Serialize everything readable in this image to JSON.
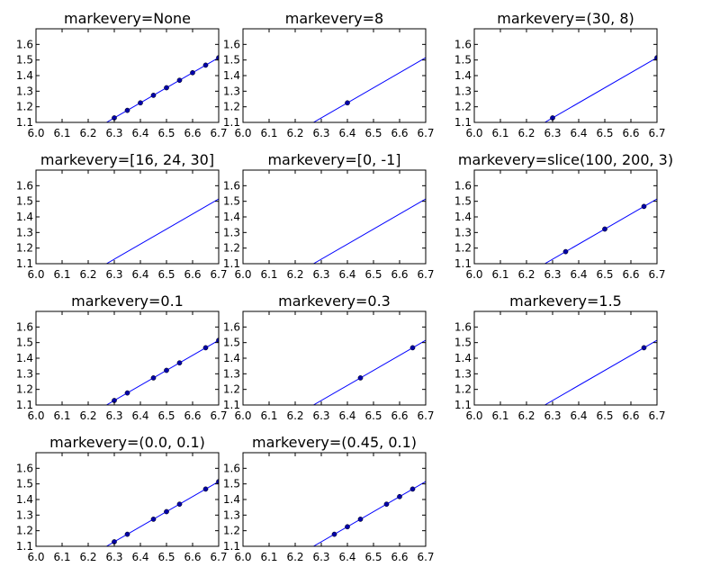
{
  "chart_data": [
    {
      "type": "line",
      "title": "markevery=None",
      "xlim": [
        6.0,
        6.7
      ],
      "ylim": [
        1.1,
        1.7
      ],
      "xticks": [
        "6.0",
        "6.1",
        "6.2",
        "6.3",
        "6.4",
        "6.5",
        "6.6",
        "6.7"
      ],
      "yticks": [
        "1.1",
        "1.2",
        "1.3",
        "1.4",
        "1.5",
        "1.6"
      ],
      "series": [
        {
          "line": [
            [
              6.27,
              1.1
            ],
            [
              6.7,
              1.515
            ]
          ],
          "markers_x": [
            6.3,
            6.35,
            6.4,
            6.45,
            6.5,
            6.55,
            6.6,
            6.65,
            6.7
          ],
          "color": "#0000ff"
        }
      ]
    },
    {
      "type": "line",
      "title": "markevery=8",
      "xlim": [
        6.0,
        6.7
      ],
      "ylim": [
        1.1,
        1.7
      ],
      "xticks": [
        "6.0",
        "6.1",
        "6.2",
        "6.3",
        "6.4",
        "6.5",
        "6.6",
        "6.7"
      ],
      "yticks": [
        "1.1",
        "1.2",
        "1.3",
        "1.4",
        "1.5",
        "1.6"
      ],
      "series": [
        {
          "line": [
            [
              6.27,
              1.1
            ],
            [
              6.7,
              1.515
            ]
          ],
          "markers_x": [
            6.4
          ],
          "color": "#0000ff"
        }
      ]
    },
    {
      "type": "line",
      "title": "markevery=(30, 8)",
      "xlim": [
        6.0,
        6.7
      ],
      "ylim": [
        1.1,
        1.7
      ],
      "xticks": [
        "6.0",
        "6.1",
        "6.2",
        "6.3",
        "6.4",
        "6.5",
        "6.6",
        "6.7"
      ],
      "yticks": [
        "1.1",
        "1.2",
        "1.3",
        "1.4",
        "1.5",
        "1.6"
      ],
      "series": [
        {
          "line": [
            [
              6.27,
              1.1
            ],
            [
              6.7,
              1.515
            ]
          ],
          "markers_x": [
            6.3,
            6.7
          ],
          "color": "#0000ff"
        }
      ]
    },
    {
      "type": "line",
      "title": "markevery=[16, 24, 30]",
      "xlim": [
        6.0,
        6.7
      ],
      "ylim": [
        1.1,
        1.7
      ],
      "xticks": [
        "6.0",
        "6.1",
        "6.2",
        "6.3",
        "6.4",
        "6.5",
        "6.6",
        "6.7"
      ],
      "yticks": [
        "1.1",
        "1.2",
        "1.3",
        "1.4",
        "1.5",
        "1.6"
      ],
      "series": [
        {
          "line": [
            [
              6.27,
              1.1
            ],
            [
              6.7,
              1.515
            ]
          ],
          "markers_x": [],
          "color": "#0000ff"
        }
      ]
    },
    {
      "type": "line",
      "title": "markevery=[0, -1]",
      "xlim": [
        6.0,
        6.7
      ],
      "ylim": [
        1.1,
        1.7
      ],
      "xticks": [
        "6.0",
        "6.1",
        "6.2",
        "6.3",
        "6.4",
        "6.5",
        "6.6",
        "6.7"
      ],
      "yticks": [
        "1.1",
        "1.2",
        "1.3",
        "1.4",
        "1.5",
        "1.6"
      ],
      "series": [
        {
          "line": [
            [
              6.27,
              1.1
            ],
            [
              6.7,
              1.515
            ]
          ],
          "markers_x": [],
          "color": "#0000ff"
        }
      ]
    },
    {
      "type": "line",
      "title": "markevery=slice(100, 200, 3)",
      "xlim": [
        6.0,
        6.7
      ],
      "ylim": [
        1.1,
        1.7
      ],
      "xticks": [
        "6.0",
        "6.1",
        "6.2",
        "6.3",
        "6.4",
        "6.5",
        "6.6",
        "6.7"
      ],
      "yticks": [
        "1.1",
        "1.2",
        "1.3",
        "1.4",
        "1.5",
        "1.6"
      ],
      "series": [
        {
          "line": [
            [
              6.27,
              1.1
            ],
            [
              6.7,
              1.515
            ]
          ],
          "markers_x": [
            6.35,
            6.5,
            6.65
          ],
          "color": "#0000ff"
        }
      ]
    },
    {
      "type": "line",
      "title": "markevery=0.1",
      "xlim": [
        6.0,
        6.7
      ],
      "ylim": [
        1.1,
        1.7
      ],
      "xticks": [
        "6.0",
        "6.1",
        "6.2",
        "6.3",
        "6.4",
        "6.5",
        "6.6",
        "6.7"
      ],
      "yticks": [
        "1.1",
        "1.2",
        "1.3",
        "1.4",
        "1.5",
        "1.6"
      ],
      "series": [
        {
          "line": [
            [
              6.27,
              1.1
            ],
            [
              6.7,
              1.515
            ]
          ],
          "markers_x": [
            6.3,
            6.35,
            6.45,
            6.5,
            6.55,
            6.65,
            6.7
          ],
          "color": "#0000ff"
        }
      ]
    },
    {
      "type": "line",
      "title": "markevery=0.3",
      "xlim": [
        6.0,
        6.7
      ],
      "ylim": [
        1.1,
        1.7
      ],
      "xticks": [
        "6.0",
        "6.1",
        "6.2",
        "6.3",
        "6.4",
        "6.5",
        "6.6",
        "6.7"
      ],
      "yticks": [
        "1.1",
        "1.2",
        "1.3",
        "1.4",
        "1.5",
        "1.6"
      ],
      "series": [
        {
          "line": [
            [
              6.27,
              1.1
            ],
            [
              6.7,
              1.515
            ]
          ],
          "markers_x": [
            6.45,
            6.65
          ],
          "color": "#0000ff"
        }
      ]
    },
    {
      "type": "line",
      "title": "markevery=1.5",
      "xlim": [
        6.0,
        6.7
      ],
      "ylim": [
        1.1,
        1.7
      ],
      "xticks": [
        "6.0",
        "6.1",
        "6.2",
        "6.3",
        "6.4",
        "6.5",
        "6.6",
        "6.7"
      ],
      "yticks": [
        "1.1",
        "1.2",
        "1.3",
        "1.4",
        "1.5",
        "1.6"
      ],
      "series": [
        {
          "line": [
            [
              6.27,
              1.1
            ],
            [
              6.7,
              1.515
            ]
          ],
          "markers_x": [
            6.65
          ],
          "color": "#0000ff"
        }
      ]
    },
    {
      "type": "line",
      "title": "markevery=(0.0, 0.1)",
      "xlim": [
        6.0,
        6.7
      ],
      "ylim": [
        1.1,
        1.7
      ],
      "xticks": [
        "6.0",
        "6.1",
        "6.2",
        "6.3",
        "6.4",
        "6.5",
        "6.6",
        "6.7"
      ],
      "yticks": [
        "1.1",
        "1.2",
        "1.3",
        "1.4",
        "1.5",
        "1.6"
      ],
      "series": [
        {
          "line": [
            [
              6.27,
              1.1
            ],
            [
              6.7,
              1.515
            ]
          ],
          "markers_x": [
            6.3,
            6.35,
            6.45,
            6.5,
            6.55,
            6.65,
            6.7
          ],
          "color": "#0000ff"
        }
      ]
    },
    {
      "type": "line",
      "title": "markevery=(0.45, 0.1)",
      "xlim": [
        6.0,
        6.7
      ],
      "ylim": [
        1.1,
        1.7
      ],
      "xticks": [
        "6.0",
        "6.1",
        "6.2",
        "6.3",
        "6.4",
        "6.5",
        "6.6",
        "6.7"
      ],
      "yticks": [
        "1.1",
        "1.2",
        "1.3",
        "1.4",
        "1.5",
        "1.6"
      ],
      "series": [
        {
          "line": [
            [
              6.27,
              1.1
            ],
            [
              6.7,
              1.515
            ]
          ],
          "markers_x": [
            6.35,
            6.4,
            6.45,
            6.55,
            6.6,
            6.65
          ],
          "color": "#0000ff"
        }
      ]
    }
  ]
}
